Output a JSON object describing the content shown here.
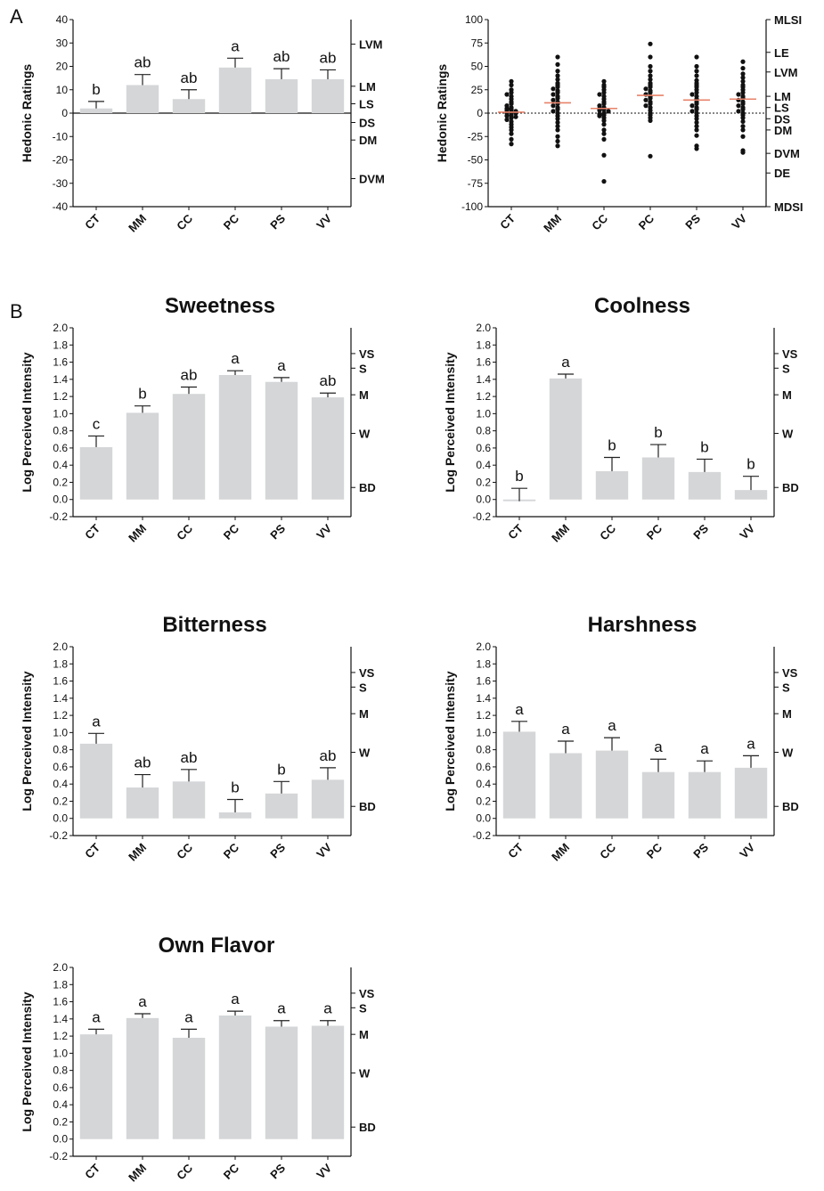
{
  "panel_labels": [
    "A",
    "B"
  ],
  "chart_data": [
    {
      "id": "hedonic-bar",
      "type": "bar",
      "title": "",
      "ylabel": "Hedonic  Ratings",
      "categories": [
        "CT",
        "MM",
        "CC",
        "PC",
        "PS",
        "VV"
      ],
      "values": [
        2,
        12,
        6,
        19.5,
        14.5,
        14.5
      ],
      "errors": [
        3,
        4.5,
        4,
        4,
        4.5,
        4
      ],
      "sig_letters": [
        "b",
        "ab",
        "ab",
        "a",
        "ab",
        "ab"
      ],
      "ylim": [
        -40,
        40
      ],
      "yticks": [
        -40,
        -30,
        -20,
        -10,
        0,
        10,
        20,
        30,
        40
      ],
      "zero_line": true,
      "right_axis": [
        {
          "label": "LVM",
          "value": 29.5
        },
        {
          "label": "LM",
          "value": 11.5
        },
        {
          "label": "LS",
          "value": 4
        },
        {
          "label": "DS",
          "value": -4
        },
        {
          "label": "DM",
          "value": -11.5
        },
        {
          "label": "DVM",
          "value": -28
        }
      ],
      "bar_color": "#d4d6d8"
    },
    {
      "id": "hedonic-scatter",
      "type": "scatter",
      "title": "",
      "ylabel": "Hedonic Ratings",
      "categories": [
        "CT",
        "MM",
        "CC",
        "PC",
        "PS",
        "VV"
      ],
      "ylim": [
        -100,
        100
      ],
      "yticks": [
        -100,
        -75,
        -50,
        -25,
        0,
        25,
        50,
        75,
        100
      ],
      "zero_line": "dotted",
      "means": [
        1,
        11,
        5,
        19,
        14,
        15
      ],
      "mean_color": "#e8836a",
      "points": [
        [
          34,
          30,
          25,
          22,
          20,
          18,
          15,
          12,
          10,
          8,
          6,
          5,
          4,
          3,
          2,
          1,
          0,
          0,
          -2,
          -3,
          -4,
          -5,
          -7,
          -9,
          -12,
          -15,
          -18,
          -22,
          -28,
          -33
        ],
        [
          60,
          52,
          45,
          40,
          36,
          32,
          30,
          28,
          26,
          24,
          22,
          20,
          18,
          16,
          14,
          12,
          10,
          8,
          6,
          4,
          2,
          0,
          -3,
          -6,
          -10,
          -14,
          -18,
          -25,
          -30,
          -35
        ],
        [
          34,
          30,
          28,
          25,
          22,
          20,
          18,
          15,
          12,
          10,
          8,
          6,
          5,
          4,
          3,
          2,
          0,
          -1,
          -2,
          -3,
          -5,
          -8,
          -12,
          -18,
          -22,
          -28,
          -45,
          -73
        ],
        [
          74,
          60,
          50,
          45,
          40,
          36,
          32,
          30,
          28,
          26,
          24,
          22,
          20,
          18,
          16,
          14,
          12,
          10,
          8,
          6,
          3,
          0,
          -2,
          -5,
          -8,
          -46
        ],
        [
          60,
          50,
          45,
          40,
          35,
          32,
          30,
          28,
          25,
          22,
          20,
          18,
          15,
          12,
          10,
          8,
          6,
          4,
          2,
          0,
          -3,
          -6,
          -10,
          -14,
          -18,
          -24,
          -35,
          -38
        ],
        [
          55,
          48,
          42,
          38,
          34,
          30,
          28,
          25,
          22,
          20,
          18,
          16,
          14,
          12,
          10,
          8,
          6,
          4,
          2,
          0,
          -2,
          -5,
          -9,
          -14,
          -18,
          -25,
          -40,
          -42
        ]
      ],
      "right_axis": [
        {
          "label": "MLSI",
          "value": 100
        },
        {
          "label": "LE",
          "value": 65
        },
        {
          "label": "LVM",
          "value": 44
        },
        {
          "label": "LM",
          "value": 18
        },
        {
          "label": "LS",
          "value": 6
        },
        {
          "label": "DS",
          "value": -6
        },
        {
          "label": "DM",
          "value": -18
        },
        {
          "label": "DVM",
          "value": -43
        },
        {
          "label": "DE",
          "value": -64
        },
        {
          "label": "MDSI",
          "value": -100
        }
      ]
    },
    {
      "id": "sweetness",
      "type": "bar",
      "title": "Sweetness",
      "ylabel": "Log Perceived Intensity",
      "categories": [
        "CT",
        "MM",
        "CC",
        "PC",
        "PS",
        "VV"
      ],
      "values": [
        0.61,
        1.01,
        1.23,
        1.45,
        1.37,
        1.19
      ],
      "errors": [
        0.13,
        0.08,
        0.08,
        0.05,
        0.05,
        0.05
      ],
      "sig_letters": [
        "c",
        "b",
        "ab",
        "a",
        "a",
        "ab"
      ],
      "ylim": [
        -0.2,
        2.0
      ],
      "yticks": [
        -0.2,
        0.0,
        0.2,
        0.4,
        0.6,
        0.8,
        1.0,
        1.2,
        1.4,
        1.6,
        1.8,
        2.0
      ],
      "right_axis": [
        {
          "label": "VS",
          "value": 1.7
        },
        {
          "label": "S",
          "value": 1.53
        },
        {
          "label": "M",
          "value": 1.22
        },
        {
          "label": "W",
          "value": 0.77
        },
        {
          "label": "BD",
          "value": 0.14
        }
      ],
      "bar_color": "#d4d6d8"
    },
    {
      "id": "coolness",
      "type": "bar",
      "title": "Coolness",
      "ylabel": "Log Perceived Intensity",
      "categories": [
        "CT",
        "MM",
        "CC",
        "PC",
        "PS",
        "VV"
      ],
      "values": [
        -0.02,
        1.41,
        0.33,
        0.49,
        0.32,
        0.11
      ],
      "errors": [
        0.15,
        0.05,
        0.16,
        0.15,
        0.15,
        0.16
      ],
      "sig_letters": [
        "b",
        "a",
        "b",
        "b",
        "b",
        "b"
      ],
      "ylim": [
        -0.2,
        2.0
      ],
      "yticks": [
        -0.2,
        0.0,
        0.2,
        0.4,
        0.6,
        0.8,
        1.0,
        1.2,
        1.4,
        1.6,
        1.8,
        2.0
      ],
      "right_axis": [
        {
          "label": "VS",
          "value": 1.7
        },
        {
          "label": "S",
          "value": 1.53
        },
        {
          "label": "M",
          "value": 1.22
        },
        {
          "label": "W",
          "value": 0.77
        },
        {
          "label": "BD",
          "value": 0.14
        }
      ],
      "bar_color": "#d4d6d8"
    },
    {
      "id": "bitterness",
      "type": "bar",
      "title": "Bitterness",
      "ylabel": "Log Perceived Intensity",
      "categories": [
        "CT",
        "MM",
        "CC",
        "PC",
        "PS",
        "VV"
      ],
      "values": [
        0.87,
        0.36,
        0.43,
        0.07,
        0.29,
        0.45
      ],
      "errors": [
        0.12,
        0.15,
        0.14,
        0.15,
        0.14,
        0.14
      ],
      "sig_letters": [
        "a",
        "ab",
        "ab",
        "b",
        "b",
        "ab"
      ],
      "ylim": [
        -0.2,
        2.0
      ],
      "yticks": [
        -0.2,
        0.0,
        0.2,
        0.4,
        0.6,
        0.8,
        1.0,
        1.2,
        1.4,
        1.6,
        1.8,
        2.0
      ],
      "right_axis": [
        {
          "label": "VS",
          "value": 1.7
        },
        {
          "label": "S",
          "value": 1.53
        },
        {
          "label": "M",
          "value": 1.22
        },
        {
          "label": "W",
          "value": 0.77
        },
        {
          "label": "BD",
          "value": 0.14
        }
      ],
      "bar_color": "#d4d6d8"
    },
    {
      "id": "harshness",
      "type": "bar",
      "title": "Harshness",
      "ylabel": "Log Perceived Intensity",
      "categories": [
        "CT",
        "MM",
        "CC",
        "PC",
        "PS",
        "VV"
      ],
      "values": [
        1.01,
        0.76,
        0.79,
        0.54,
        0.54,
        0.59
      ],
      "errors": [
        0.12,
        0.14,
        0.15,
        0.15,
        0.13,
        0.14
      ],
      "sig_letters": [
        "a",
        "a",
        "a",
        "a",
        "a",
        "a"
      ],
      "ylim": [
        -0.2,
        2.0
      ],
      "yticks": [
        -0.2,
        0.0,
        0.2,
        0.4,
        0.6,
        0.8,
        1.0,
        1.2,
        1.4,
        1.6,
        1.8,
        2.0
      ],
      "right_axis": [
        {
          "label": "VS",
          "value": 1.7
        },
        {
          "label": "S",
          "value": 1.53
        },
        {
          "label": "M",
          "value": 1.22
        },
        {
          "label": "W",
          "value": 0.77
        },
        {
          "label": "BD",
          "value": 0.14
        }
      ],
      "bar_color": "#d4d6d8"
    },
    {
      "id": "own-flavor",
      "type": "bar",
      "title": "Own Flavor",
      "ylabel": "Log Perceived Intensity",
      "categories": [
        "CT",
        "MM",
        "CC",
        "PC",
        "PS",
        "VV"
      ],
      "values": [
        1.22,
        1.41,
        1.18,
        1.44,
        1.31,
        1.32
      ],
      "errors": [
        0.06,
        0.05,
        0.1,
        0.05,
        0.07,
        0.06
      ],
      "sig_letters": [
        "a",
        "a",
        "a",
        "a",
        "a",
        "a"
      ],
      "ylim": [
        -0.2,
        2.0
      ],
      "yticks": [
        -0.2,
        0.0,
        0.2,
        0.4,
        0.6,
        0.8,
        1.0,
        1.2,
        1.4,
        1.6,
        1.8,
        2.0
      ],
      "right_axis": [
        {
          "label": "VS",
          "value": 1.7
        },
        {
          "label": "S",
          "value": 1.53
        },
        {
          "label": "M",
          "value": 1.22
        },
        {
          "label": "W",
          "value": 0.77
        },
        {
          "label": "BD",
          "value": 0.14
        }
      ],
      "bar_color": "#d4d6d8"
    }
  ]
}
